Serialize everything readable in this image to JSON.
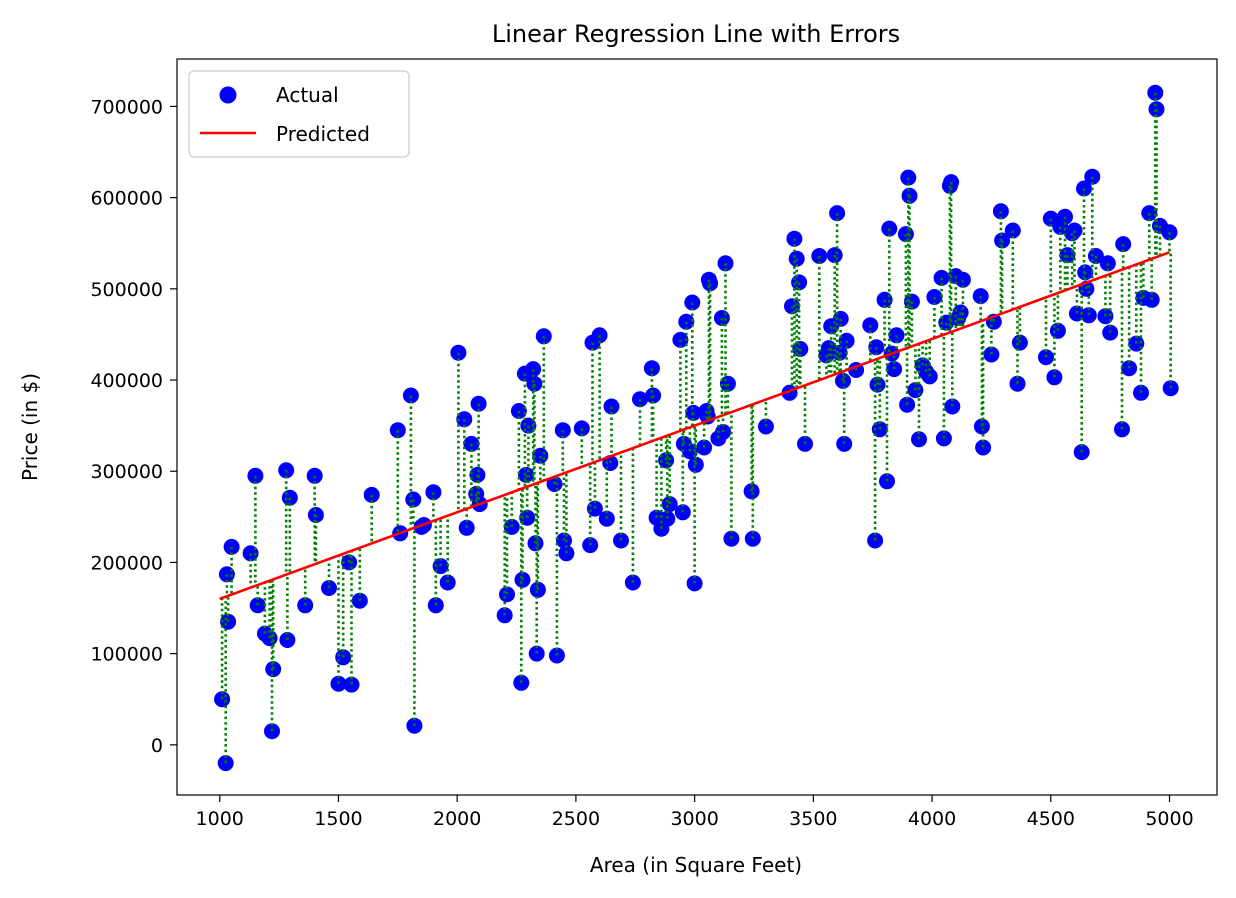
{
  "chart_data": {
    "type": "scatter",
    "title": "Linear Regression Line with Errors",
    "xlabel": "Area (in Square Feet)",
    "ylabel": "Price (in $)",
    "xlim": [
      820,
      5200
    ],
    "ylim": [
      -55000,
      752000
    ],
    "xticks": [
      1000,
      1500,
      2000,
      2500,
      3000,
      3500,
      4000,
      4500,
      5000
    ],
    "yticks": [
      0,
      100000,
      200000,
      300000,
      400000,
      500000,
      600000,
      700000
    ],
    "grid": false,
    "legend_position": "top-left",
    "series": [
      {
        "name": "Actual",
        "kind": "scatter",
        "color": "#0000ff"
      },
      {
        "name": "Predicted",
        "kind": "line",
        "color": "#ff0000"
      }
    ],
    "regression_line": {
      "x": [
        1000,
        5000
      ],
      "y": [
        160000,
        540000
      ]
    },
    "residual_style": {
      "color": "#008000",
      "dash": "dotted"
    },
    "points": [
      [
        1010,
        50000
      ],
      [
        1025,
        -20000
      ],
      [
        1030,
        187000
      ],
      [
        1035,
        135000
      ],
      [
        1050,
        217000
      ],
      [
        1130,
        210000
      ],
      [
        1150,
        295000
      ],
      [
        1160,
        153000
      ],
      [
        1190,
        122000
      ],
      [
        1210,
        117000
      ],
      [
        1220,
        15000
      ],
      [
        1225,
        83000
      ],
      [
        1280,
        301000
      ],
      [
        1285,
        115000
      ],
      [
        1295,
        271000
      ],
      [
        1360,
        153000
      ],
      [
        1400,
        295000
      ],
      [
        1405,
        252000
      ],
      [
        1460,
        172000
      ],
      [
        1500,
        67000
      ],
      [
        1520,
        96000
      ],
      [
        1545,
        200000
      ],
      [
        1555,
        66000
      ],
      [
        1590,
        158000
      ],
      [
        1640,
        274000
      ],
      [
        1750,
        345000
      ],
      [
        1760,
        232000
      ],
      [
        1805,
        383000
      ],
      [
        1815,
        269000
      ],
      [
        1820,
        21000
      ],
      [
        1850,
        239000
      ],
      [
        1860,
        241000
      ],
      [
        1900,
        277000
      ],
      [
        1910,
        153000
      ],
      [
        1930,
        196000
      ],
      [
        1960,
        178000
      ],
      [
        2005,
        430000
      ],
      [
        2030,
        357000
      ],
      [
        2040,
        238000
      ],
      [
        2060,
        330000
      ],
      [
        2080,
        275000
      ],
      [
        2085,
        296000
      ],
      [
        2090,
        374000
      ],
      [
        2095,
        264000
      ],
      [
        2200,
        142000
      ],
      [
        2210,
        165000
      ],
      [
        2230,
        239000
      ],
      [
        2260,
        366000
      ],
      [
        2270,
        68000
      ],
      [
        2275,
        181000
      ],
      [
        2285,
        407000
      ],
      [
        2290,
        296000
      ],
      [
        2295,
        249000
      ],
      [
        2300,
        350000
      ],
      [
        2320,
        412000
      ],
      [
        2325,
        396000
      ],
      [
        2330,
        221000
      ],
      [
        2335,
        100000
      ],
      [
        2340,
        170000
      ],
      [
        2350,
        317000
      ],
      [
        2365,
        448000
      ],
      [
        2410,
        286000
      ],
      [
        2420,
        98000
      ],
      [
        2445,
        345000
      ],
      [
        2450,
        224000
      ],
      [
        2460,
        210000
      ],
      [
        2525,
        347000
      ],
      [
        2560,
        219000
      ],
      [
        2570,
        441000
      ],
      [
        2580,
        259000
      ],
      [
        2600,
        449000
      ],
      [
        2630,
        248000
      ],
      [
        2645,
        309000
      ],
      [
        2650,
        371000
      ],
      [
        2690,
        224000
      ],
      [
        2740,
        178000
      ],
      [
        2770,
        379000
      ],
      [
        2820,
        413000
      ],
      [
        2825,
        383000
      ],
      [
        2840,
        249000
      ],
      [
        2860,
        237000
      ],
      [
        2880,
        312000
      ],
      [
        2885,
        248000
      ],
      [
        2895,
        264000
      ],
      [
        2940,
        444000
      ],
      [
        2950,
        255000
      ],
      [
        2955,
        330000
      ],
      [
        2965,
        464000
      ],
      [
        2980,
        322000
      ],
      [
        2990,
        485000
      ],
      [
        2995,
        364000
      ],
      [
        3000,
        177000
      ],
      [
        3005,
        307000
      ],
      [
        3040,
        326000
      ],
      [
        3050,
        366000
      ],
      [
        3055,
        360000
      ],
      [
        3060,
        510000
      ],
      [
        3065,
        506000
      ],
      [
        3100,
        336000
      ],
      [
        3115,
        468000
      ],
      [
        3120,
        343000
      ],
      [
        3130,
        528000
      ],
      [
        3140,
        396000
      ],
      [
        3155,
        226000
      ],
      [
        3240,
        278000
      ],
      [
        3245,
        226000
      ],
      [
        3300,
        349000
      ],
      [
        3400,
        386000
      ],
      [
        3410,
        481000
      ],
      [
        3420,
        555000
      ],
      [
        3430,
        533000
      ],
      [
        3440,
        507000
      ],
      [
        3445,
        434000
      ],
      [
        3465,
        330000
      ],
      [
        3525,
        536000
      ],
      [
        3555,
        427000
      ],
      [
        3565,
        435000
      ],
      [
        3575,
        459000
      ],
      [
        3590,
        537000
      ],
      [
        3600,
        583000
      ],
      [
        3610,
        430000
      ],
      [
        3615,
        467000
      ],
      [
        3625,
        399000
      ],
      [
        3630,
        330000
      ],
      [
        3640,
        443000
      ],
      [
        3680,
        411000
      ],
      [
        3740,
        460000
      ],
      [
        3760,
        224000
      ],
      [
        3765,
        436000
      ],
      [
        3770,
        395000
      ],
      [
        3780,
        346000
      ],
      [
        3800,
        488000
      ],
      [
        3810,
        289000
      ],
      [
        3820,
        566000
      ],
      [
        3830,
        429000
      ],
      [
        3840,
        412000
      ],
      [
        3850,
        449000
      ],
      [
        3890,
        560000
      ],
      [
        3895,
        373000
      ],
      [
        3900,
        622000
      ],
      [
        3905,
        602000
      ],
      [
        3915,
        486000
      ],
      [
        3930,
        389000
      ],
      [
        3945,
        335000
      ],
      [
        3960,
        416000
      ],
      [
        3975,
        409000
      ],
      [
        3990,
        404000
      ],
      [
        4010,
        491000
      ],
      [
        4040,
        512000
      ],
      [
        4050,
        336000
      ],
      [
        4060,
        463000
      ],
      [
        4075,
        613000
      ],
      [
        4080,
        617000
      ],
      [
        4085,
        371000
      ],
      [
        4100,
        514000
      ],
      [
        4110,
        468000
      ],
      [
        4120,
        474000
      ],
      [
        4130,
        510000
      ],
      [
        4205,
        492000
      ],
      [
        4210,
        349000
      ],
      [
        4215,
        326000
      ],
      [
        4250,
        428000
      ],
      [
        4260,
        464000
      ],
      [
        4290,
        585000
      ],
      [
        4295,
        553000
      ],
      [
        4340,
        564000
      ],
      [
        4360,
        396000
      ],
      [
        4370,
        441000
      ],
      [
        4480,
        425000
      ],
      [
        4500,
        577000
      ],
      [
        4515,
        403000
      ],
      [
        4530,
        454000
      ],
      [
        4540,
        568000
      ],
      [
        4560,
        579000
      ],
      [
        4570,
        537000
      ],
      [
        4590,
        561000
      ],
      [
        4600,
        564000
      ],
      [
        4610,
        473000
      ],
      [
        4630,
        321000
      ],
      [
        4640,
        610000
      ],
      [
        4645,
        518000
      ],
      [
        4650,
        500000
      ],
      [
        4660,
        471000
      ],
      [
        4675,
        623000
      ],
      [
        4690,
        536000
      ],
      [
        4730,
        470000
      ],
      [
        4740,
        528000
      ],
      [
        4750,
        452000
      ],
      [
        4800,
        346000
      ],
      [
        4805,
        549000
      ],
      [
        4830,
        413000
      ],
      [
        4860,
        440000
      ],
      [
        4880,
        386000
      ],
      [
        4890,
        490000
      ],
      [
        4915,
        583000
      ],
      [
        4925,
        488000
      ],
      [
        4940,
        715000
      ],
      [
        4945,
        697000
      ],
      [
        4960,
        569000
      ],
      [
        5000,
        562000
      ],
      [
        5005,
        391000
      ]
    ]
  }
}
